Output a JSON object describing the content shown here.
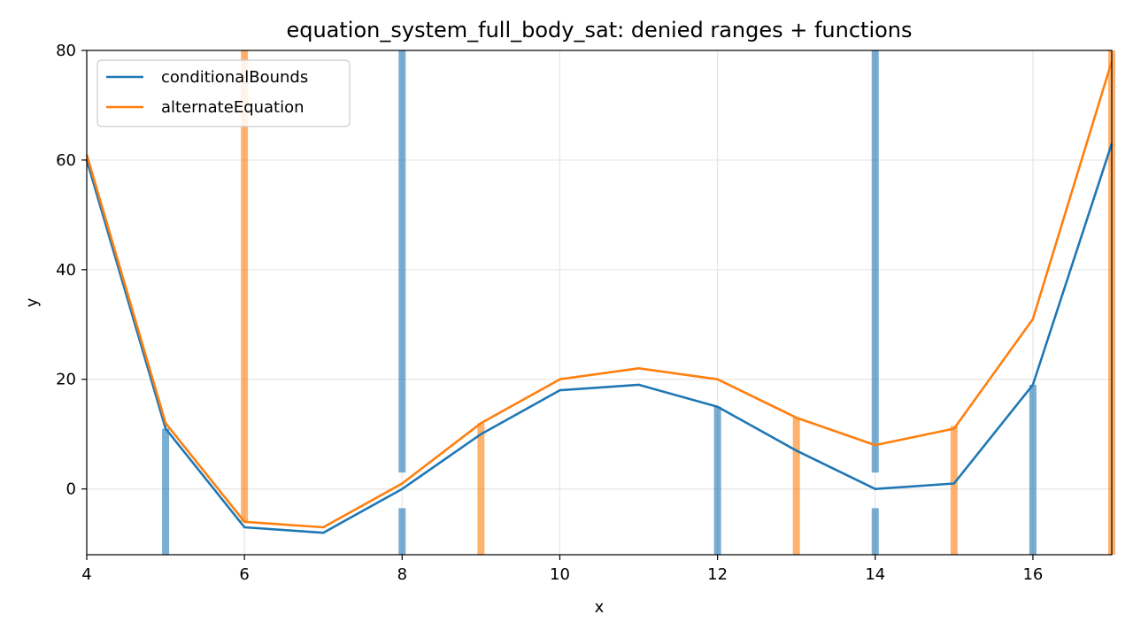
{
  "chart_data": {
    "type": "line",
    "title": "equation_system_full_body_sat: denied ranges + functions",
    "xlabel": "x",
    "ylabel": "y",
    "xlim": [
      4,
      17
    ],
    "ylim": [
      -12,
      80
    ],
    "xticks": [
      4,
      6,
      8,
      10,
      12,
      14,
      16
    ],
    "yticks": [
      0,
      20,
      40,
      60,
      80
    ],
    "grid": true,
    "legend_position": "upper-left",
    "series": [
      {
        "name": "conditionalBounds",
        "color": "#1f77b4",
        "x": [
          4,
          5,
          6,
          7,
          8,
          9,
          10,
          11,
          12,
          13,
          14,
          15,
          16,
          17
        ],
        "y": [
          60,
          11,
          -7,
          -8,
          0,
          10,
          18,
          19,
          15,
          7,
          0,
          1,
          19,
          63
        ]
      },
      {
        "name": "alternateEquation",
        "color": "#ff7f0e",
        "x": [
          4,
          5,
          6,
          7,
          8,
          9,
          10,
          11,
          12,
          13,
          14,
          15,
          16,
          17
        ],
        "y": [
          61,
          12,
          -6,
          -7,
          1,
          12,
          20,
          22,
          20,
          13,
          8,
          11,
          31,
          78
        ]
      }
    ],
    "denied_ranges": [
      {
        "series": "conditionalBounds",
        "x": 5,
        "ranges": [
          [
            -12,
            11
          ]
        ]
      },
      {
        "series": "alternateEquation",
        "x": 6,
        "ranges": [
          [
            -6,
            80
          ]
        ]
      },
      {
        "series": "conditionalBounds",
        "x": 8,
        "ranges": [
          [
            -12,
            -3.5
          ],
          [
            3,
            80
          ]
        ]
      },
      {
        "series": "alternateEquation",
        "x": 9,
        "ranges": [
          [
            -12,
            12
          ]
        ]
      },
      {
        "series": "conditionalBounds",
        "x": 12,
        "ranges": [
          [
            -12,
            15
          ]
        ]
      },
      {
        "series": "alternateEquation",
        "x": 13,
        "ranges": [
          [
            -12,
            13
          ]
        ]
      },
      {
        "series": "conditionalBounds",
        "x": 14,
        "ranges": [
          [
            -12,
            -3.5
          ],
          [
            3,
            80
          ]
        ]
      },
      {
        "series": "alternateEquation",
        "x": 15,
        "ranges": [
          [
            -12,
            11.5
          ]
        ]
      },
      {
        "series": "conditionalBounds",
        "x": 16,
        "ranges": [
          [
            -12,
            19
          ]
        ]
      },
      {
        "series": "alternateEquation",
        "x": 17,
        "ranges": [
          [
            -12,
            80
          ]
        ]
      }
    ]
  }
}
